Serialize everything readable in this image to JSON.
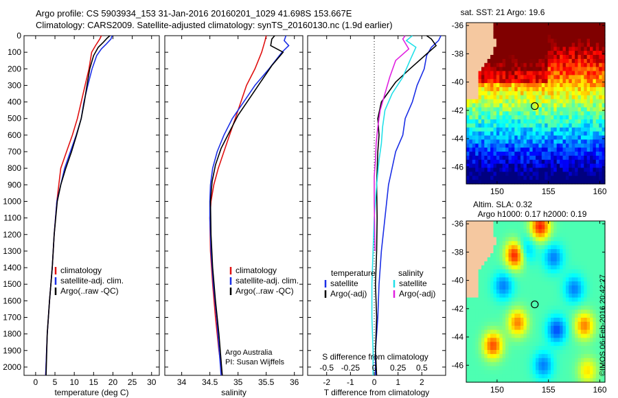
{
  "header": {
    "line1": "Argo profile: CS 5903934_153 31-Jan-2016 20160201_1029 41.698S 153.667E",
    "line2": "Climatology: CARS2009. Satellite-adjusted climatology: synTS_20160130.nc (1.9d earlier)"
  },
  "colors": {
    "climatology": "#e01010",
    "satellite": "#1a2ee6",
    "argo": "#000000",
    "salinity_satellite": "#20e0e8",
    "salinity_argo": "#e020e0",
    "land": "#f5c8a0"
  },
  "stamp": "©IMOS 06-Feb-2016 20:42:27",
  "chart_data": [
    {
      "type": "line",
      "xlabel": "temperature (deg C)",
      "ylabel": "",
      "xlim": [
        -3,
        32
      ],
      "ylim": [
        2050,
        0
      ],
      "xticks": [
        0,
        5,
        10,
        15,
        20,
        25,
        30
      ],
      "yticks": [
        0,
        100,
        200,
        300,
        400,
        500,
        600,
        700,
        800,
        900,
        1000,
        1100,
        1200,
        1300,
        1400,
        1500,
        1600,
        1700,
        1800,
        1900,
        2000
      ],
      "legend": [
        "climatology",
        "satellite-adj. clim.",
        "Argo(..raw -QC)"
      ],
      "series": [
        {
          "name": "climatology",
          "color_key": "climatology",
          "x": [
            17.0,
            16.6,
            15.5,
            14.5,
            13.8,
            12.8,
            11.8,
            10.8,
            9.5,
            8.0,
            6.5,
            5.5,
            4.8,
            4.3,
            3.6,
            3.0,
            2.6
          ],
          "y": [
            0,
            20,
            60,
            100,
            200,
            300,
            400,
            500,
            600,
            700,
            800,
            1000,
            1200,
            1400,
            1600,
            1800,
            2050
          ]
        },
        {
          "name": "satellite-adj. clim.",
          "color_key": "satellite",
          "x": [
            19.8,
            19.5,
            18.3,
            17.0,
            15.8,
            14.6,
            13.5,
            12.5,
            11.8,
            10.5,
            9.0,
            7.5,
            6.5,
            5.5,
            4.8,
            4.3,
            3.6,
            3.0,
            2.6
          ],
          "y": [
            0,
            20,
            50,
            80,
            120,
            200,
            300,
            400,
            500,
            600,
            700,
            800,
            900,
            1000,
            1200,
            1400,
            1600,
            1800,
            2050
          ]
        },
        {
          "name": "Argo(..raw -QC)",
          "color_key": "argo",
          "x": [
            19.2,
            18.5,
            17.5,
            16.2,
            15.0,
            14.0,
            13.3,
            12.6,
            11.8,
            10.6,
            9.3,
            7.8,
            6.5,
            5.6,
            4.8,
            4.3,
            3.6,
            3.0,
            2.7
          ],
          "y": [
            0,
            15,
            40,
            70,
            120,
            200,
            300,
            400,
            500,
            600,
            700,
            800,
            900,
            1000,
            1200,
            1400,
            1600,
            1800,
            2050
          ]
        }
      ]
    },
    {
      "type": "line",
      "xlabel": "salinity",
      "ylabel": "",
      "xlim": [
        33.7,
        36.15
      ],
      "ylim": [
        2050,
        0
      ],
      "xticks": [
        34,
        34.5,
        35,
        35.5,
        36
      ],
      "legend": [
        "climatology",
        "satellite-adj. clim.",
        "Argo(..raw -QC)"
      ],
      "annotation": [
        "Argo Australia",
        "PI: Susan Wijffels"
      ],
      "series": [
        {
          "name": "climatology",
          "color_key": "climatology",
          "x": [
            35.5,
            35.48,
            35.42,
            35.3,
            35.15,
            35.05,
            34.95,
            34.85,
            34.75,
            34.65,
            34.57,
            34.52,
            34.5,
            34.51,
            34.55,
            34.6,
            34.66,
            34.72
          ],
          "y": [
            0,
            30,
            100,
            200,
            300,
            400,
            500,
            600,
            700,
            800,
            900,
            1000,
            1100,
            1300,
            1500,
            1700,
            1900,
            2050
          ]
        },
        {
          "name": "satellite-adj. clim.",
          "color_key": "satellite",
          "x": [
            35.85,
            35.82,
            35.9,
            35.78,
            35.55,
            35.3,
            35.1,
            34.9,
            34.75,
            34.63,
            34.55,
            34.51,
            34.5,
            34.5,
            34.52,
            34.56,
            34.62,
            34.7
          ],
          "y": [
            0,
            30,
            60,
            100,
            200,
            300,
            400,
            500,
            600,
            700,
            800,
            900,
            1000,
            1100,
            1300,
            1500,
            1700,
            2050
          ]
        },
        {
          "name": "Argo(..raw -QC)",
          "color_key": "argo",
          "x": [
            35.65,
            35.6,
            35.58,
            35.8,
            35.6,
            35.4,
            35.2,
            35.0,
            34.85,
            34.7,
            34.6,
            34.54,
            34.51,
            34.52,
            34.55,
            34.6,
            34.66,
            34.72
          ],
          "y": [
            0,
            20,
            60,
            100,
            180,
            280,
            380,
            480,
            580,
            680,
            780,
            880,
            1000,
            1200,
            1400,
            1600,
            1800,
            2050
          ]
        }
      ]
    },
    {
      "type": "line",
      "xlabel": "T difference from climatology",
      "ylabel": "",
      "xlim": [
        -2.8,
        3.0
      ],
      "ylim": [
        2050,
        0
      ],
      "xticks": [
        -2,
        -1,
        0,
        1,
        2
      ],
      "secondary_axis": {
        "label": "S difference from climatology",
        "ticks": [
          "-0.5",
          "-0.25",
          "0",
          "0.25",
          "0.5"
        ],
        "scale": 4
      },
      "legend_temperature": {
        "heading": "temperature",
        "items": [
          "satellite",
          "Argo(-adj)"
        ]
      },
      "legend_salinity": {
        "heading": "salinity",
        "items": [
          "satellite",
          "Argo(-adj)"
        ]
      },
      "series": [
        {
          "name": "temperature satellite",
          "color_key": "satellite",
          "x": [
            2.8,
            2.7,
            2.4,
            2.2,
            2.1,
            1.8,
            1.6,
            1.3,
            1.2,
            0.9,
            0.6,
            0.45,
            0.3,
            0.2,
            0.15,
            0.1,
            0.05,
            0.05
          ],
          "y": [
            0,
            30,
            70,
            120,
            200,
            300,
            400,
            500,
            600,
            700,
            900,
            1100,
            1300,
            1500,
            1700,
            1800,
            1900,
            2050
          ]
        },
        {
          "name": "temperature Argo(-adj)",
          "color_key": "argo",
          "x": [
            2.2,
            2.4,
            2.6,
            2.2,
            1.5,
            0.9,
            0.3,
            0.15,
            0.2,
            0.15,
            0.1,
            0.12,
            0.1,
            0.05,
            0.1,
            0.05,
            0.1
          ],
          "y": [
            0,
            20,
            60,
            110,
            200,
            280,
            400,
            500,
            600,
            700,
            900,
            1100,
            1300,
            1500,
            1700,
            1900,
            2050
          ]
        },
        {
          "name": "salinity satellite",
          "color_key": "salinity_satellite",
          "x": [
            1.6,
            1.35,
            1.75,
            1.5,
            1.2,
            0.75,
            0.45,
            0.35,
            0.3,
            0.2,
            0.1,
            0.0,
            -0.05,
            -0.1,
            -0.1,
            -0.05,
            -0.05
          ],
          "y": [
            0,
            30,
            70,
            150,
            250,
            350,
            450,
            550,
            650,
            750,
            900,
            1100,
            1300,
            1500,
            1700,
            1900,
            2050
          ]
        },
        {
          "name": "salinity Argo(-adj)",
          "color_key": "salinity_argo",
          "x": [
            1.3,
            1.2,
            1.45,
            0.9,
            0.65,
            0.45,
            0.25,
            0.15,
            0.08,
            0.05,
            0.0,
            0.0,
            0.02,
            0.03
          ],
          "y": [
            0,
            20,
            80,
            150,
            250,
            350,
            450,
            550,
            650,
            750,
            850,
            1000,
            1200,
            1300
          ]
        }
      ]
    },
    {
      "type": "heatmap",
      "title": "sat. SST: 21  Argo: 19.6",
      "xlim": [
        147,
        160.5
      ],
      "ylim": [
        -47.2,
        -35.8
      ],
      "xticks": [
        150,
        155,
        160
      ],
      "yticks": [
        -36,
        -38,
        -40,
        -42,
        -44,
        -46
      ],
      "marker": {
        "lon": 153.667,
        "lat": -41.698
      }
    },
    {
      "type": "heatmap",
      "title": [
        "Altim. SLA: 0.32",
        "Argo h1000: 0.17 h2000: 0.19"
      ],
      "xlim": [
        147,
        160.5
      ],
      "ylim": [
        -47.2,
        -35.8
      ],
      "xticks": [
        150,
        155,
        160
      ],
      "yticks": [
        -36,
        -38,
        -40,
        -42,
        -44,
        -46
      ],
      "marker": {
        "lon": 153.667,
        "lat": -41.698
      }
    }
  ]
}
